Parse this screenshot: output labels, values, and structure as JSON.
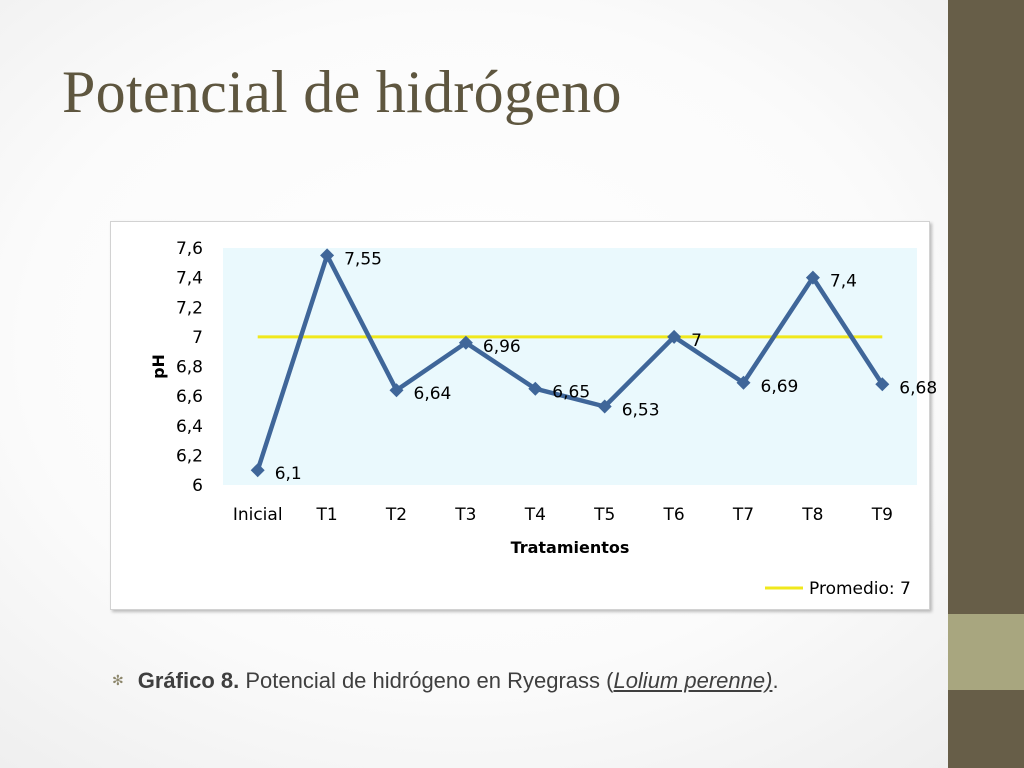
{
  "slide": {
    "title": "Potencial de hidrógeno",
    "caption": {
      "label": "Gráfico 8.",
      "text": " Potencial de hidrógeno en Ryegrass (",
      "species": "Lolium perenne)",
      "end": "."
    }
  },
  "colors": {
    "series": "#3f6699",
    "average_line": "#f0e81c",
    "plot_background": "#eaf9fd",
    "title": "#5e563f",
    "side_bar": "#675e48",
    "side_bar_accent": "#a8a67f"
  },
  "chart_data": {
    "type": "line",
    "xlabel": "Tratamientos",
    "ylabel": "pH",
    "categories": [
      "Inicial",
      "T1",
      "T2",
      "T3",
      "T4",
      "T5",
      "T6",
      "T7",
      "T8",
      "T9"
    ],
    "series": [
      {
        "values": [
          6.1,
          7.55,
          6.64,
          6.96,
          6.65,
          6.53,
          7,
          6.69,
          7.4,
          6.68
        ],
        "data_labels": [
          "6,1",
          "7,55",
          "6,64",
          "6,96",
          "6,65",
          "6,53",
          "7",
          "6,69",
          "7,4",
          "6,68"
        ],
        "marker": "diamond"
      },
      {
        "name": "Promedio: 7",
        "values": [
          7,
          7,
          7,
          7,
          7,
          7,
          7,
          7,
          7,
          7
        ]
      }
    ],
    "ylim": [
      6,
      7.6
    ],
    "yticks": [
      6,
      6.2,
      6.4,
      6.6,
      6.8,
      7,
      7.2,
      7.4,
      7.6
    ],
    "ytick_labels": [
      "6",
      "6,2",
      "6,4",
      "6,6",
      "6,8",
      "7",
      "7,2",
      "7,4",
      "7,6"
    ],
    "grid": false,
    "legend_position": "bottom-right"
  }
}
